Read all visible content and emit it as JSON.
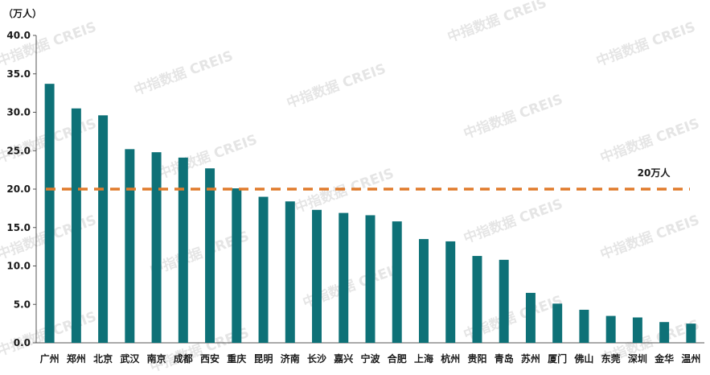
{
  "chart_data": {
    "type": "bar",
    "unit_label": "（万人）",
    "categories": [
      "广州",
      "郑州",
      "北京",
      "武汉",
      "南京",
      "成都",
      "西安",
      "重庆",
      "昆明",
      "济南",
      "长沙",
      "嘉兴",
      "宁波",
      "合肥",
      "上海",
      "杭州",
      "贵阳",
      "青岛",
      "苏州",
      "厦门",
      "佛山",
      "东莞",
      "深圳",
      "金华",
      "温州"
    ],
    "values": [
      33.7,
      30.5,
      29.6,
      25.2,
      24.8,
      24.1,
      22.7,
      20.1,
      19.0,
      18.4,
      17.3,
      16.9,
      16.6,
      15.8,
      13.5,
      13.2,
      11.3,
      10.8,
      6.5,
      5.1,
      4.3,
      3.5,
      3.3,
      2.7,
      2.5
    ],
    "ylim": [
      0,
      40
    ],
    "yticks": [
      "0.0",
      "5.0",
      "10.0",
      "15.0",
      "20.0",
      "25.0",
      "30.0",
      "35.0",
      "40.0"
    ],
    "grid": false,
    "legend": "none",
    "bar_color": "#0e7177",
    "reference_line": {
      "value": 20,
      "label": "20万人",
      "color": "#e07b2c",
      "style": "dashed"
    },
    "watermark": "中指数据 CREIS"
  }
}
